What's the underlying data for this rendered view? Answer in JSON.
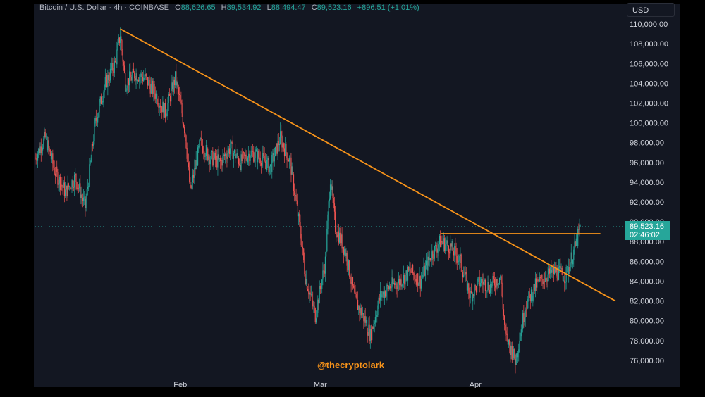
{
  "legend": {
    "symbol": "Bitcoin / U.S. Dollar · 4h · COINBASE",
    "open_label": "O",
    "open": "88,626.65",
    "high_label": "H",
    "high": "89,534.92",
    "low_label": "L",
    "low": "88,494.47",
    "close_label": "C",
    "close": "89,523.16",
    "change": "+896.51 (+1.01%)"
  },
  "currency": "USD",
  "last_price": {
    "price": "89,523.16",
    "countdown": "02:46:02"
  },
  "watermark": "@thecryptolark",
  "colors": {
    "background": "#131722",
    "up": "#26a69a",
    "down": "#ef5350",
    "trendline": "#f7931a",
    "axis_text": "#d1d4dc"
  },
  "chart_data": {
    "type": "line",
    "title": "Bitcoin / U.S. Dollar · 4h · COINBASE",
    "xlabel": "",
    "ylabel": "",
    "ylim": [
      74000,
      111000
    ],
    "y_ticks": [
      "110,000.00",
      "108,000.00",
      "106,000.00",
      "104,000.00",
      "102,000.00",
      "100,000.00",
      "98,000.00",
      "96,000.00",
      "94,000.00",
      "92,000.00",
      "90,000.00",
      "88,000.00",
      "86,000.00",
      "84,000.00",
      "82,000.00",
      "80,000.00",
      "78,000.00",
      "76,000.00"
    ],
    "x_ticks": [
      "Feb",
      "Mar",
      "Apr"
    ],
    "grid": false,
    "series": [
      {
        "x": [
          "2025-01-03",
          "2025-01-05",
          "2025-01-07",
          "2025-01-09",
          "2025-01-11",
          "2025-01-13",
          "2025-01-15",
          "2025-01-17",
          "2025-01-19",
          "2025-01-20",
          "2025-01-21",
          "2025-01-23",
          "2025-01-25",
          "2025-01-27",
          "2025-01-29",
          "2025-01-31",
          "2025-02-01",
          "2025-02-02",
          "2025-02-03",
          "2025-02-05",
          "2025-02-07",
          "2025-02-09",
          "2025-02-11",
          "2025-02-13",
          "2025-02-15",
          "2025-02-17",
          "2025-02-19",
          "2025-02-21",
          "2025-02-23",
          "2025-02-25",
          "2025-02-26",
          "2025-02-28",
          "2025-03-02",
          "2025-03-03",
          "2025-03-04",
          "2025-03-06",
          "2025-03-08",
          "2025-03-10",
          "2025-03-11",
          "2025-03-13",
          "2025-03-15",
          "2025-03-17",
          "2025-03-19",
          "2025-03-21",
          "2025-03-23",
          "2025-03-25",
          "2025-03-27",
          "2025-03-29",
          "2025-03-31",
          "2025-04-02",
          "2025-04-04",
          "2025-04-06",
          "2025-04-07",
          "2025-04-09",
          "2025-04-11",
          "2025-04-13",
          "2025-04-15",
          "2025-04-17",
          "2025-04-19",
          "2025-04-21",
          "2025-04-22"
        ],
        "values": [
          96500,
          98500,
          95000,
          93000,
          94500,
          91500,
          100000,
          104000,
          106000,
          109000,
          104000,
          105000,
          104500,
          103000,
          101000,
          104500,
          102000,
          99000,
          93000,
          98000,
          96500,
          96000,
          97500,
          96000,
          97000,
          96500,
          95500,
          98500,
          96000,
          89000,
          84500,
          80500,
          86000,
          94500,
          89500,
          87000,
          82000,
          80000,
          78500,
          82500,
          83500,
          84000,
          85000,
          84000,
          86500,
          88000,
          87500,
          86000,
          82500,
          84000,
          83500,
          84500,
          78500,
          76000,
          81500,
          83500,
          84500,
          85000,
          84500,
          87500,
          89523
        ]
      }
    ],
    "annotations": [
      {
        "type": "trendline",
        "from": [
          "2025-01-20",
          109500
        ],
        "to": [
          "2025-04-29",
          82000
        ]
      },
      {
        "type": "horizontal",
        "from": "2025-03-25",
        "to": "2025-04-26",
        "value": 88800
      }
    ]
  }
}
